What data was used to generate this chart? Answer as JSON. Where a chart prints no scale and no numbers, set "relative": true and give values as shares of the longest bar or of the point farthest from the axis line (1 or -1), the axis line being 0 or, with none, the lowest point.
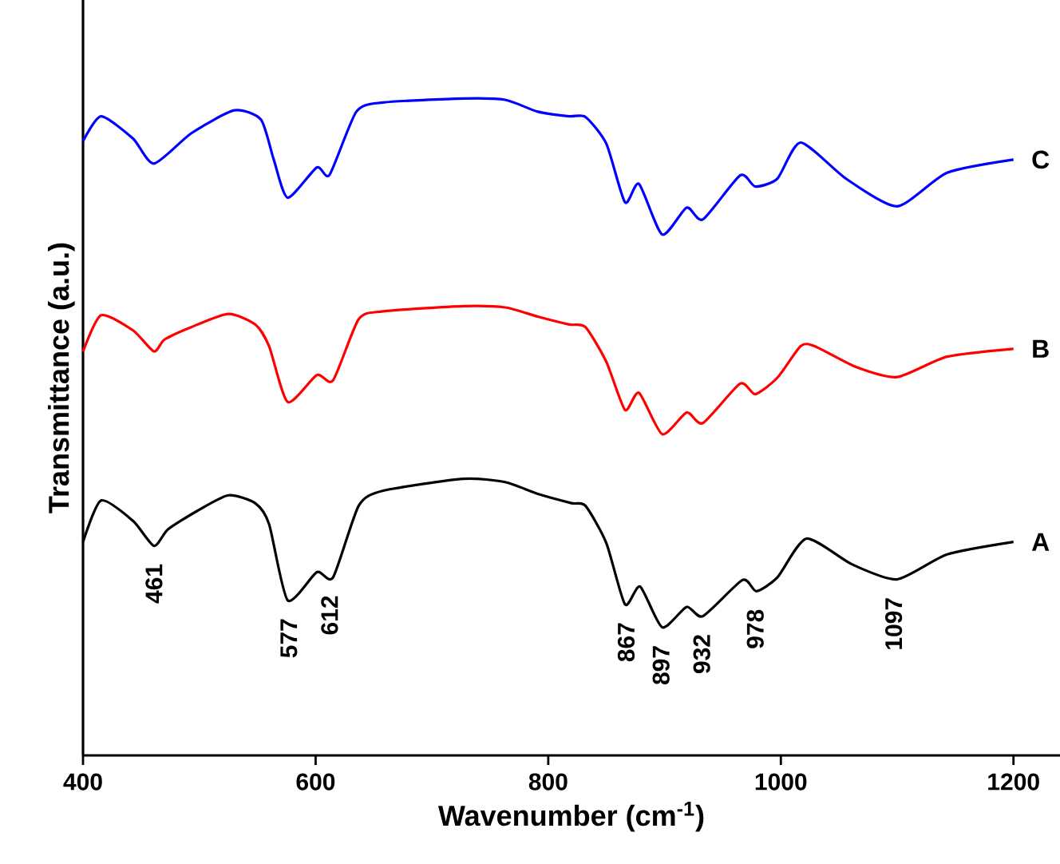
{
  "chart_data": {
    "type": "line",
    "relative": true,
    "xlabel": "Wavenumber (cm$^{-1}$)",
    "ylabel": "Transmittance (a.u.)",
    "xlim": [
      400,
      1240
    ],
    "xticks": [
      400,
      600,
      800,
      1000,
      1200
    ],
    "grid": false,
    "marker": "none",
    "line_style": "solid",
    "series": [
      {
        "name": "A",
        "color": "#000000",
        "x": [
          400,
          415.5,
          443,
          461,
          473,
          498,
          525,
          548,
          560,
          576,
          601,
          615,
          637,
          658,
          727,
          763,
          791,
          820,
          832,
          850,
          866,
          879,
          898,
          919,
          933,
          967,
          979,
          997,
          1022,
          1061,
          1100,
          1143,
          1200
        ],
        "values": [
          0.325,
          0.388,
          0.357,
          0.319,
          0.344,
          0.372,
          0.396,
          0.384,
          0.352,
          0.236,
          0.279,
          0.271,
          0.38,
          0.403,
          0.421,
          0.416,
          0.398,
          0.384,
          0.38,
          0.323,
          0.23,
          0.257,
          0.195,
          0.226,
          0.212,
          0.267,
          0.25,
          0.271,
          0.33,
          0.291,
          0.268,
          0.306,
          0.325
        ]
      },
      {
        "name": "B",
        "color": "#ff0000",
        "x": [
          400,
          415.5,
          443,
          461,
          470,
          493,
          525,
          548,
          560,
          576,
          601,
          615,
          637,
          658,
          727,
          763,
          791,
          818,
          832,
          850,
          866,
          878,
          898,
          919,
          933,
          965,
          978,
          997,
          1017,
          1029,
          1065,
          1100,
          1143,
          1200
        ],
        "values": [
          0.615,
          0.67,
          0.647,
          0.615,
          0.633,
          0.652,
          0.672,
          0.656,
          0.623,
          0.538,
          0.579,
          0.571,
          0.664,
          0.676,
          0.684,
          0.682,
          0.668,
          0.656,
          0.652,
          0.599,
          0.526,
          0.552,
          0.489,
          0.522,
          0.506,
          0.566,
          0.55,
          0.575,
          0.623,
          0.623,
          0.591,
          0.576,
          0.607,
          0.619
        ]
      },
      {
        "name": "C",
        "color": "#0000ff",
        "x": [
          400,
          415.5,
          443,
          461,
          493,
          530,
          553,
          564,
          576,
          601,
          612,
          635,
          658,
          727,
          763,
          791,
          818,
          832,
          850,
          866,
          878,
          898,
          919,
          933,
          965,
          978,
          997,
          1017,
          1056,
          1100,
          1143,
          1200
        ],
        "values": [
          0.935,
          0.973,
          0.939,
          0.901,
          0.947,
          0.982,
          0.968,
          0.907,
          0.849,
          0.895,
          0.884,
          0.98,
          0.994,
          1.0,
          0.998,
          0.98,
          0.973,
          0.972,
          0.931,
          0.842,
          0.87,
          0.793,
          0.834,
          0.816,
          0.883,
          0.866,
          0.878,
          0.933,
          0.878,
          0.836,
          0.887,
          0.907
        ]
      }
    ],
    "annotations": [
      {
        "text": "461",
        "x": 461,
        "y": 0.319
      },
      {
        "text": "577",
        "x": 577,
        "y": 0.236
      },
      {
        "text": "612",
        "x": 612,
        "y": 0.271
      },
      {
        "text": "867",
        "x": 867,
        "y": 0.23
      },
      {
        "text": "897",
        "x": 897,
        "y": 0.195
      },
      {
        "text": "932",
        "x": 932,
        "y": 0.212
      },
      {
        "text": "978",
        "x": 978,
        "y": 0.25
      },
      {
        "text": "1097",
        "x": 1097,
        "y": 0.268
      }
    ]
  }
}
